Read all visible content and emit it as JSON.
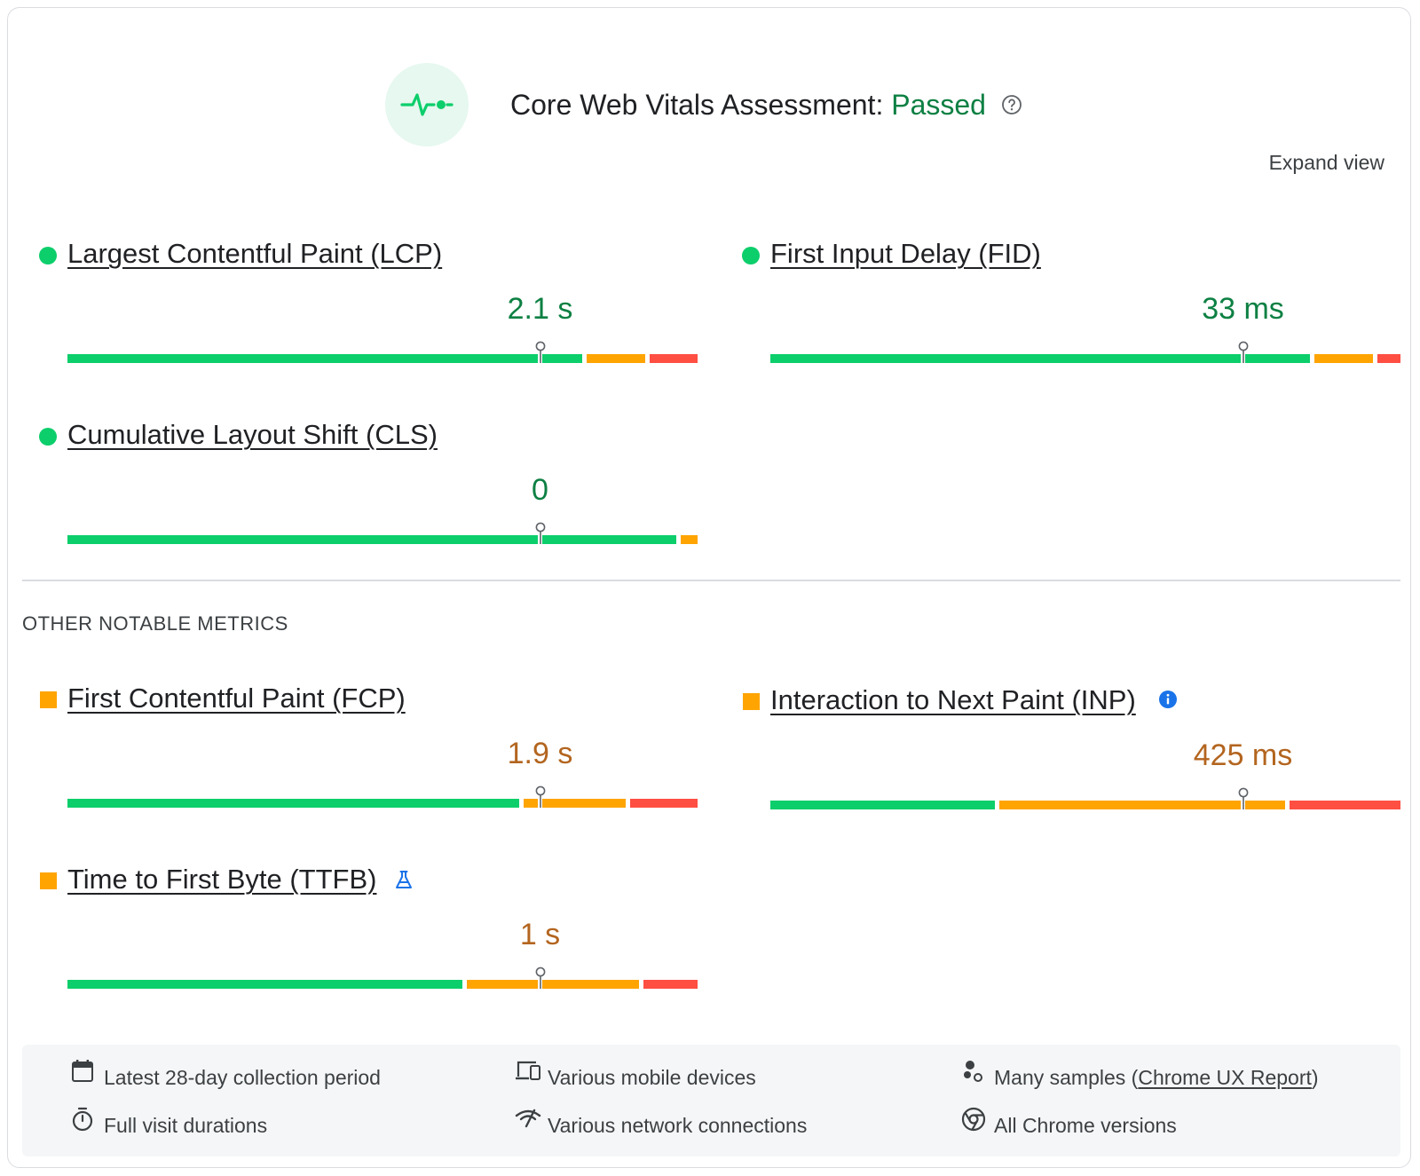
{
  "header": {
    "title_prefix": "Core Web Vitals Assessment: ",
    "status": "Passed",
    "help_icon": "help-circle-icon",
    "badge_icon": "pulse-icon",
    "expand_label": "Expand view"
  },
  "colors": {
    "good": "#0cce6b",
    "needs_improvement": "#ffa400",
    "poor": "#ff4e42",
    "passed_text": "#0d8043"
  },
  "core_metrics": [
    {
      "name": "Largest Contentful Paint (LCP)",
      "value": "2.1 s",
      "rating": "good",
      "marker_fraction": 0.75,
      "distribution": [
        0.82,
        0.1,
        0.08
      ]
    },
    {
      "name": "First Input Delay (FID)",
      "value": "33 ms",
      "rating": "good",
      "marker_fraction": 0.75,
      "distribution": [
        0.86,
        0.1,
        0.04
      ]
    },
    {
      "name": "Cumulative Layout Shift (CLS)",
      "value": "0",
      "rating": "good",
      "marker_fraction": 0.75,
      "distribution": [
        0.97,
        0.03,
        0.0
      ]
    }
  ],
  "other_section_label": "OTHER NOTABLE METRICS",
  "other_metrics": [
    {
      "name": "First Contentful Paint (FCP)",
      "value": "1.9 s",
      "rating": "needs_improvement",
      "marker_fraction": 0.75,
      "distribution": [
        0.72,
        0.17,
        0.11
      ]
    },
    {
      "name": "Interaction to Next Paint (INP)",
      "value": "425 ms",
      "rating": "needs_improvement",
      "marker_fraction": 0.75,
      "distribution": [
        0.36,
        0.46,
        0.18
      ],
      "extra_icon": "info-icon"
    },
    {
      "name": "Time to First Byte (TTFB)",
      "value": "1 s",
      "rating": "needs_improvement",
      "marker_fraction": 0.75,
      "distribution": [
        0.63,
        0.28,
        0.09
      ],
      "extra_icon": "flask-icon"
    }
  ],
  "footer": {
    "items": [
      {
        "icon": "calendar-icon",
        "text": "Latest 28-day collection period"
      },
      {
        "icon": "devices-icon",
        "text": "Various mobile devices"
      },
      {
        "icon": "samples-icon",
        "text": "Many samples (",
        "link": "Chrome UX Report",
        "suffix": ")"
      },
      {
        "icon": "timer-icon",
        "text": "Full visit durations"
      },
      {
        "icon": "network-icon",
        "text": "Various network connections"
      },
      {
        "icon": "chrome-icon",
        "text": "All Chrome versions"
      }
    ]
  }
}
